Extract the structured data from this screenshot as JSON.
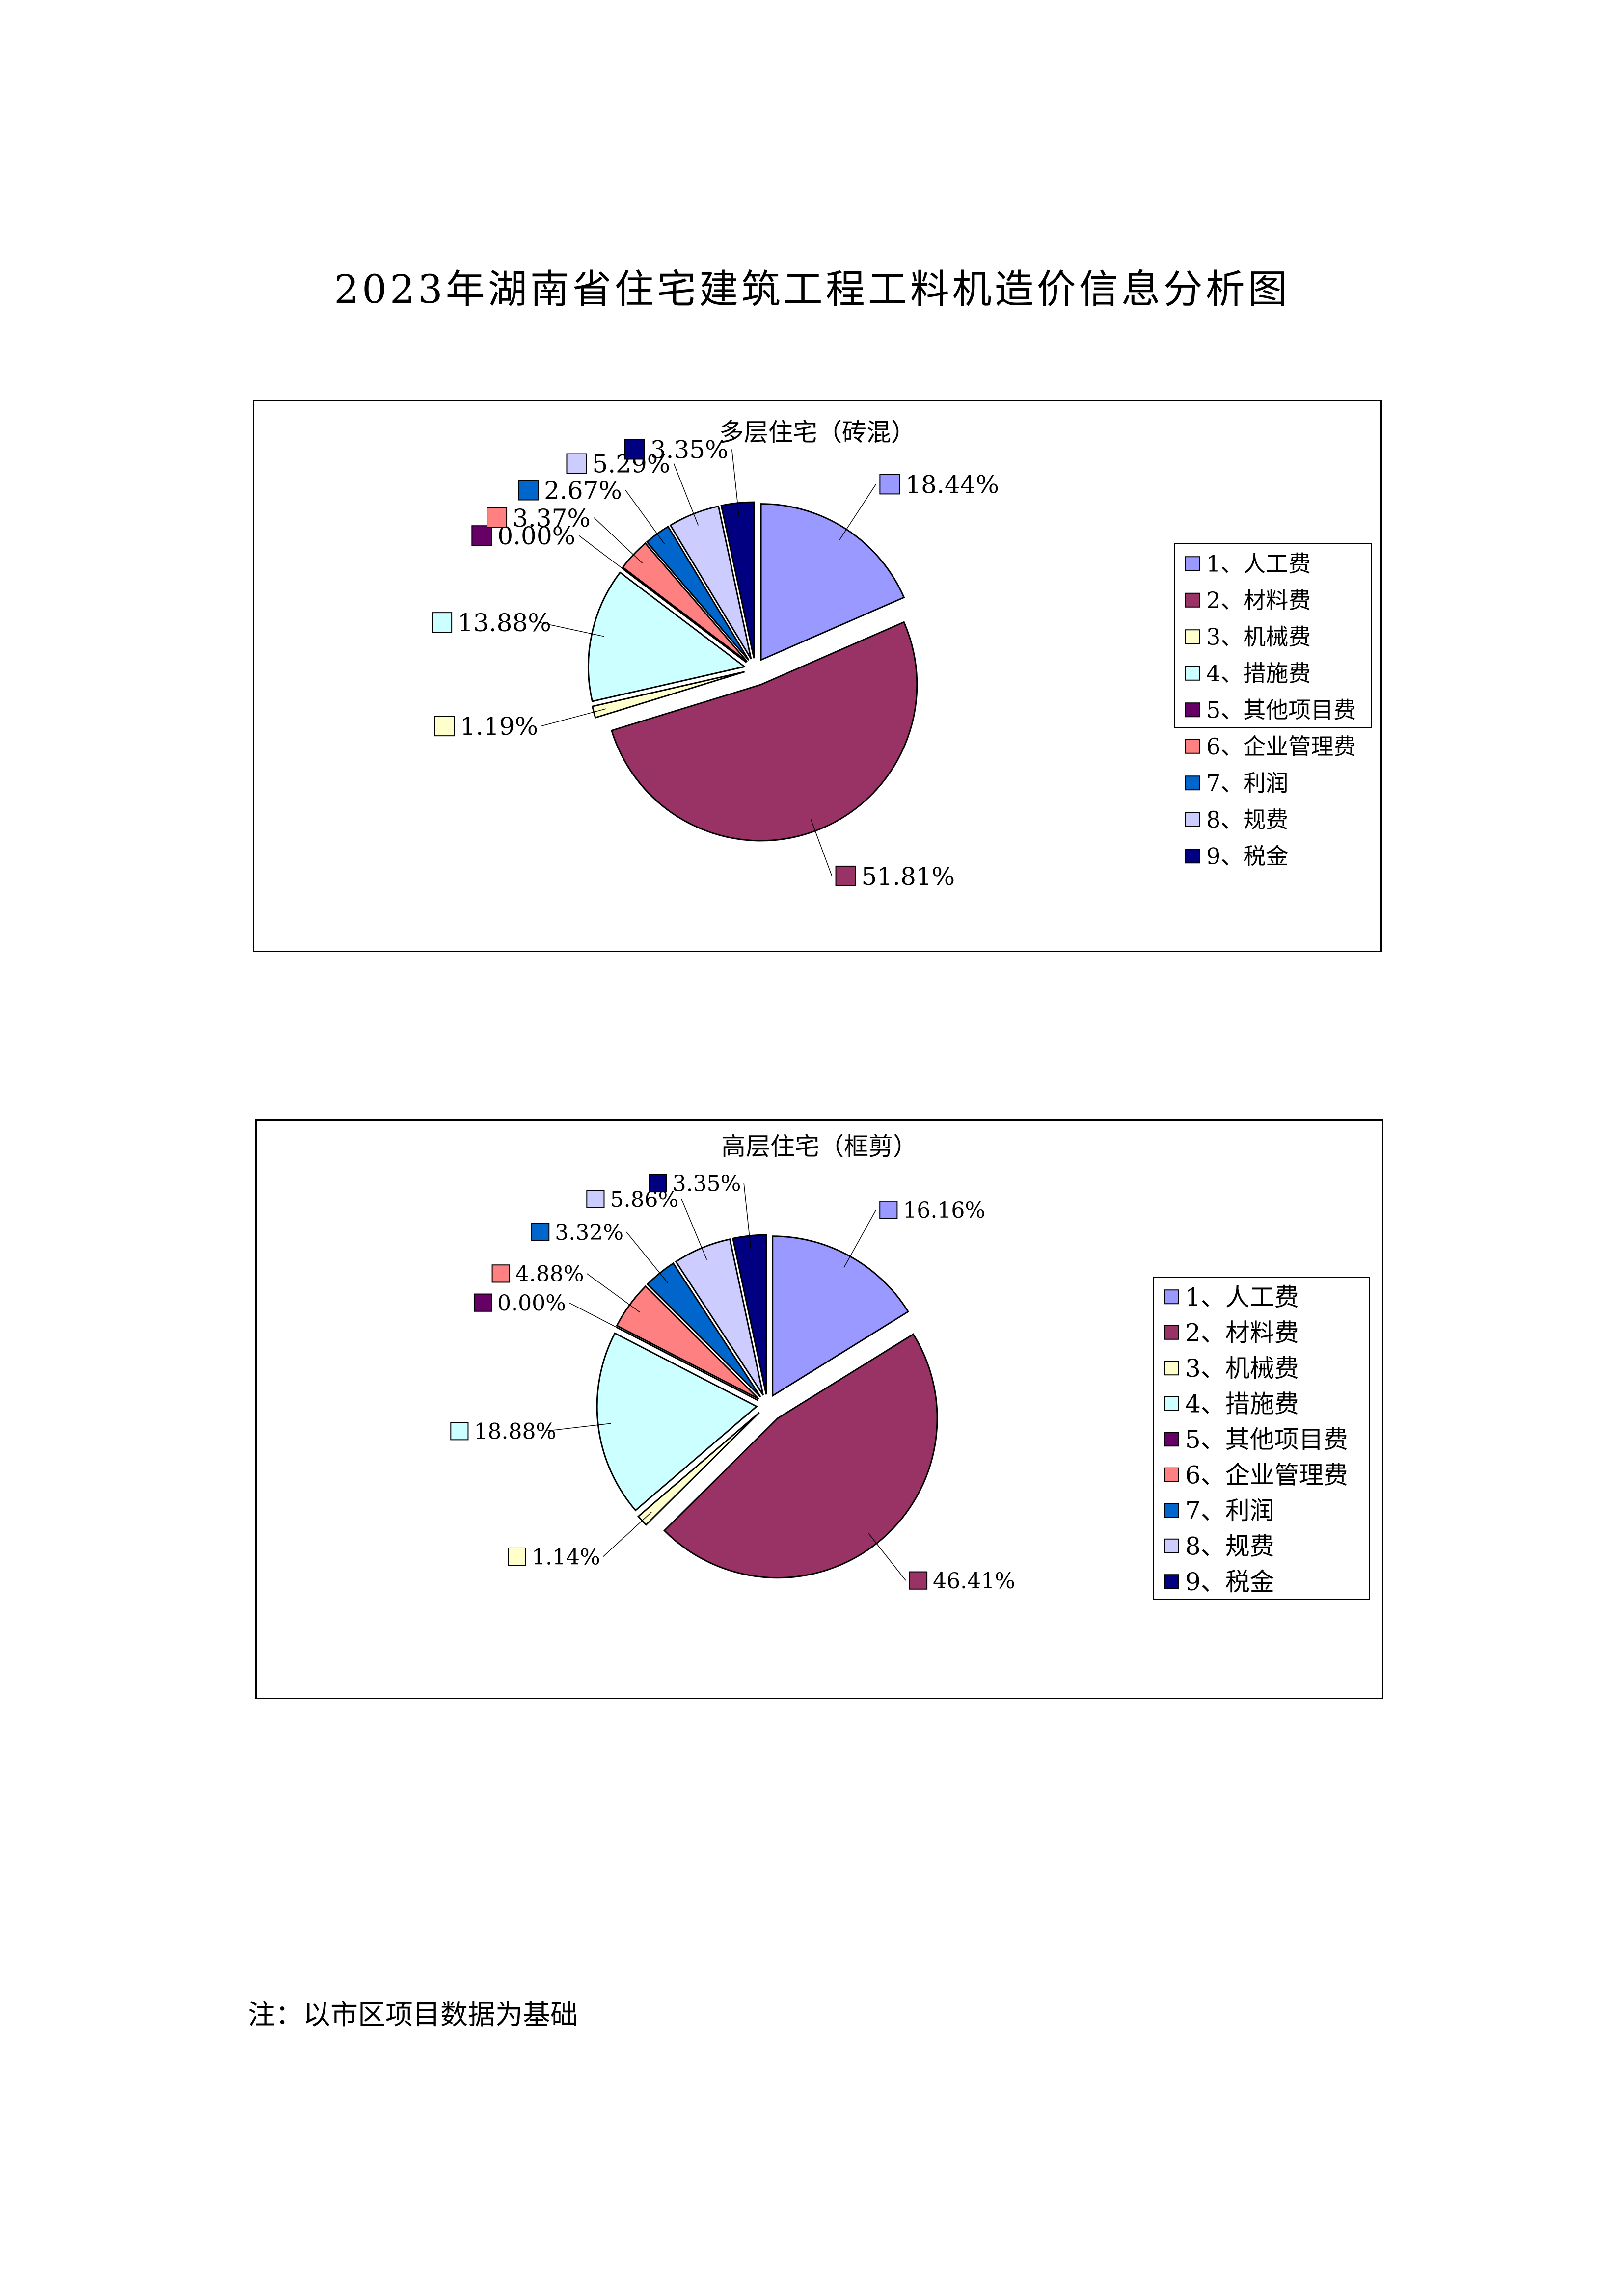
{
  "page": {
    "title": "2023年湖南省住宅建筑工程工料机造价信息分析图",
    "note": "注：以市区项目数据为基础"
  },
  "chart_data": [
    {
      "type": "pie",
      "title": "多层住宅（砖混）",
      "categories": [
        "1、人工费",
        "2、材料费",
        "3、机械费",
        "4、措施费",
        "5、其他项目费",
        "6、企业管理费",
        "7、利润",
        "8、规费",
        "9、税金"
      ],
      "values": [
        18.44,
        51.81,
        1.19,
        13.88,
        0.0,
        3.37,
        2.67,
        5.29,
        3.35
      ],
      "labels": [
        "18.44%",
        "51.81%",
        "1.19%",
        "13.88%",
        "0.00%",
        "3.37%",
        "2.67%",
        "5.29%",
        "3.35%"
      ],
      "colors": [
        "#9999ff",
        "#993366",
        "#ffffcc",
        "#ccffff",
        "#660066",
        "#ff8080",
        "#0066cc",
        "#ccccff",
        "#000080"
      ],
      "exploded": true,
      "legend": "right"
    },
    {
      "type": "pie",
      "title": "高层住宅（框剪）",
      "categories": [
        "1、人工费",
        "2、材料费",
        "3、机械费",
        "4、措施费",
        "5、其他项目费",
        "6、企业管理费",
        "7、利润",
        "8、规费",
        "9、税金"
      ],
      "values": [
        16.16,
        46.41,
        1.14,
        18.88,
        0.0,
        4.88,
        3.32,
        5.86,
        3.35
      ],
      "labels": [
        "16.16%",
        "46.41%",
        "1.14%",
        "18.88%",
        "0.00%",
        "4.88%",
        "3.32%",
        "5.86%",
        "3.35%"
      ],
      "colors": [
        "#9999ff",
        "#993366",
        "#ffffcc",
        "#ccffff",
        "#660066",
        "#ff8080",
        "#0066cc",
        "#ccccff",
        "#000080"
      ],
      "exploded": true,
      "legend": "right"
    }
  ]
}
